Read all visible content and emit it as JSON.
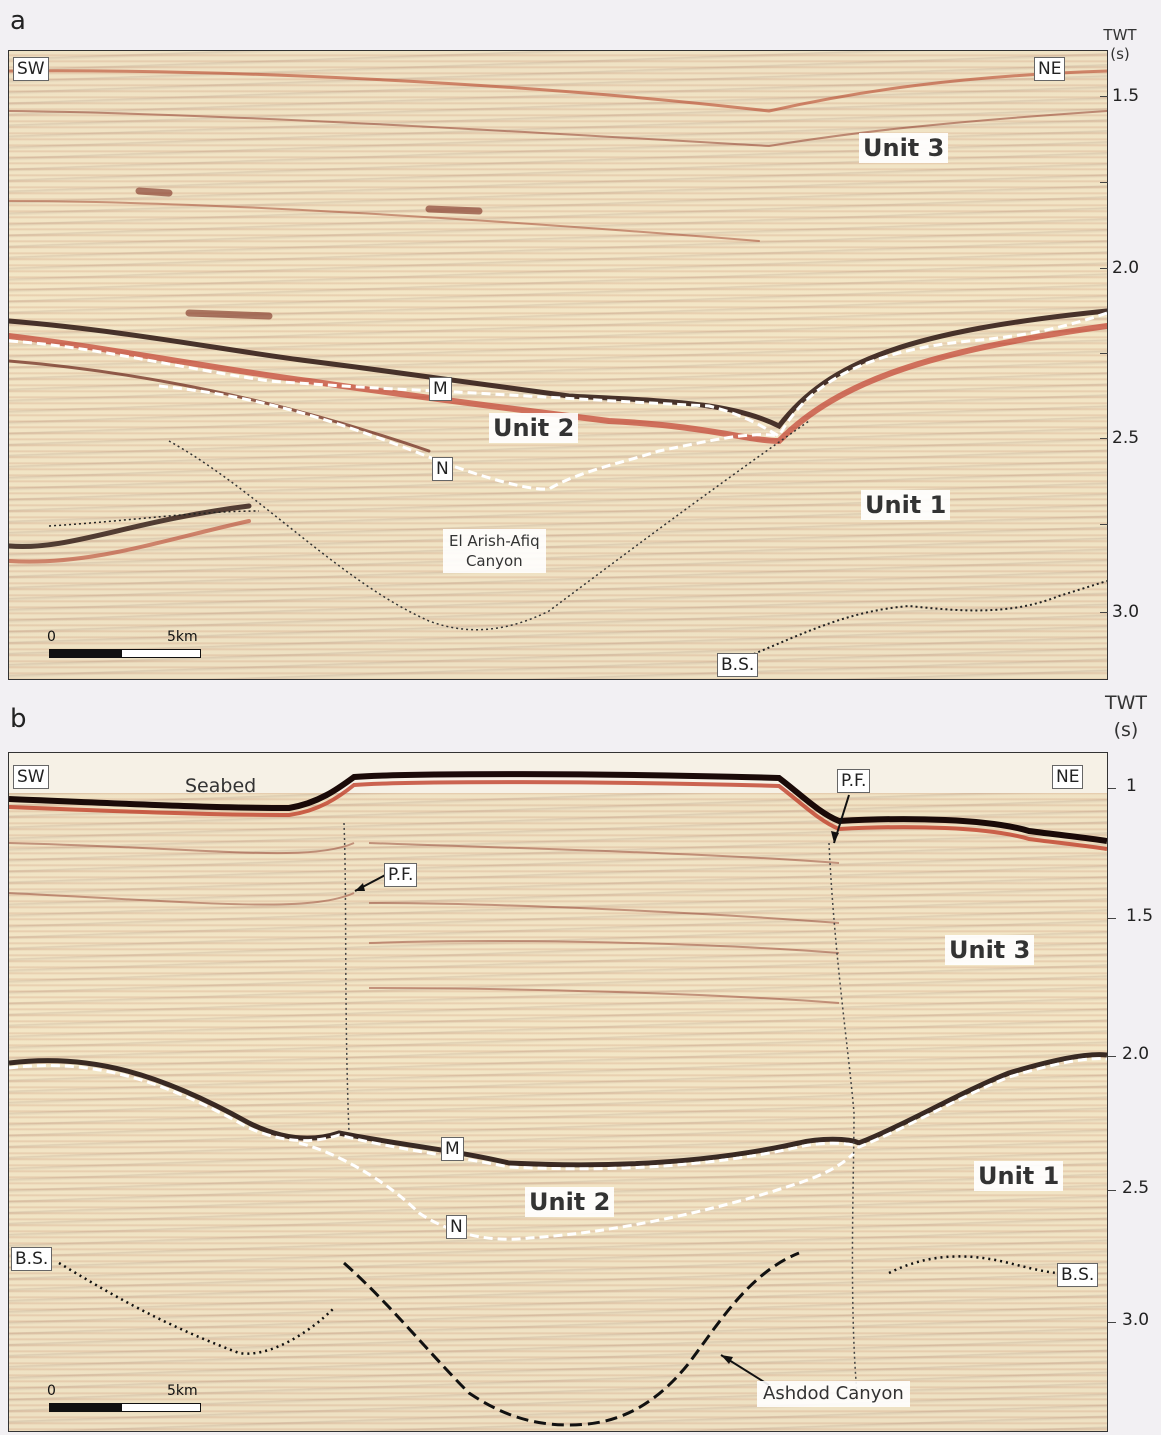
{
  "panel_a": {
    "letter": "a",
    "sw": "SW",
    "ne": "NE",
    "axis_title": "TWT\n(s)",
    "ticks": [
      "1.5",
      "2.0",
      "2.5",
      "3.0"
    ],
    "units": [
      "Unit 3",
      "Unit 2",
      "Unit 1"
    ],
    "horizons": [
      "M",
      "N"
    ],
    "canyon_label": "El Arish-Afiq\nCanyon",
    "bs_label": "B.S.",
    "scale": {
      "start": "0",
      "end": "5km"
    }
  },
  "panel_b": {
    "letter": "b",
    "sw": "SW",
    "ne": "NE",
    "seabed": "Seabed",
    "axis_title": "TWT\n(s)",
    "ticks": [
      "1",
      "1.5",
      "2.0",
      "2.5",
      "3.0"
    ],
    "units": [
      "Unit 3",
      "Unit 2",
      "Unit 1"
    ],
    "horizons": [
      "M",
      "N"
    ],
    "pf_label": "P.F.",
    "bs_label": "B.S.",
    "canyon_label": "Ashdod Canyon",
    "scale": {
      "start": "0",
      "end": "5km"
    }
  }
}
